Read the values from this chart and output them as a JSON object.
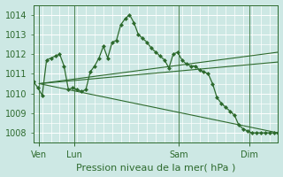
{
  "background_color": "#cde8e4",
  "grid_color": "#ffffff",
  "line_color": "#2d6a2d",
  "marker_color": "#2d6a2d",
  "ylim": [
    1007.5,
    1014.5
  ],
  "yticks": [
    1008,
    1009,
    1010,
    1011,
    1012,
    1013,
    1014
  ],
  "xlabel": "Pression niveau de la mer( hPa )",
  "xlabel_fontsize": 8,
  "tick_fontsize": 7,
  "vlines_x": [
    4,
    28,
    100,
    148
  ],
  "vline_labels": [
    "Ven",
    "Lun",
    "Sam",
    "Dim"
  ],
  "xlim": [
    0,
    168
  ],
  "series_main": {
    "x": [
      0,
      3,
      6,
      9,
      12,
      15,
      18,
      21,
      24,
      27,
      30,
      33,
      36,
      39,
      42,
      45,
      48,
      51,
      54,
      57,
      60,
      63,
      66,
      69,
      72,
      75,
      78,
      81,
      84,
      87,
      90,
      93,
      96,
      99,
      102,
      105,
      108,
      111,
      114,
      117,
      120,
      123,
      126,
      129,
      132,
      135,
      138,
      141,
      144,
      147,
      150,
      153,
      156,
      159,
      162,
      165,
      168
    ],
    "y": [
      1010.6,
      1010.3,
      1009.9,
      1011.7,
      1011.8,
      1011.9,
      1012.0,
      1011.4,
      1010.2,
      1010.3,
      1010.2,
      1010.1,
      1010.2,
      1011.1,
      1011.4,
      1011.8,
      1012.4,
      1011.8,
      1012.6,
      1012.7,
      1013.5,
      1013.8,
      1014.0,
      1013.6,
      1013.0,
      1012.8,
      1012.6,
      1012.3,
      1012.1,
      1011.9,
      1011.7,
      1011.3,
      1012.0,
      1012.1,
      1011.7,
      1011.5,
      1011.4,
      1011.4,
      1011.2,
      1011.1,
      1011.0,
      1010.5,
      1009.8,
      1009.5,
      1009.3,
      1009.1,
      1008.9,
      1008.4,
      1008.2,
      1008.1,
      1008.0,
      1008.0,
      1008.0,
      1008.0,
      1008.0,
      1008.0,
      1008.0
    ]
  },
  "fan_lines": [
    {
      "x": [
        4,
        168
      ],
      "y": [
        1010.5,
        1011.6
      ]
    },
    {
      "x": [
        4,
        168
      ],
      "y": [
        1010.5,
        1012.1
      ]
    },
    {
      "x": [
        4,
        168
      ],
      "y": [
        1010.5,
        1008.0
      ]
    }
  ]
}
